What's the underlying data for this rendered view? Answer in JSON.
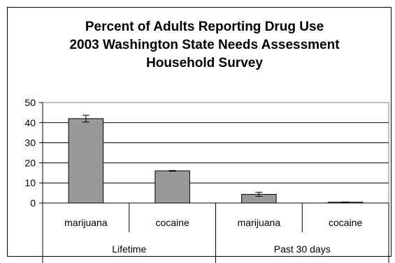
{
  "chart_data": {
    "type": "bar",
    "title": [
      "Percent of Adults Reporting Drug Use",
      "2003 Washington State Needs Assessment",
      "Household Survey"
    ],
    "groups": [
      {
        "label": "Lifetime",
        "categories": [
          "marijuana",
          "cocaine"
        ]
      },
      {
        "label": "Past 30 days",
        "categories": [
          "marijuana",
          "cocaine"
        ]
      }
    ],
    "values": [
      42,
      16,
      4.3,
      0.4
    ],
    "error_bars": [
      [
        40.3,
        43.7
      ],
      [
        15.8,
        16.2
      ],
      [
        3.3,
        5.3
      ],
      [
        0.3,
        0.5
      ]
    ],
    "ylim": [
      0,
      50
    ],
    "yticks": [
      0,
      10,
      20,
      30,
      40,
      50
    ],
    "grid": true,
    "bar_color": "#999999"
  }
}
